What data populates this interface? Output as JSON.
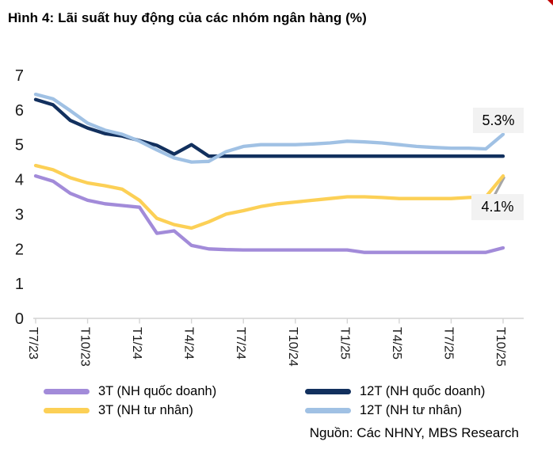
{
  "title": "Hình 4: Lãi suất huy động của các nhóm ngân hàng (%)",
  "source": "Nguồn: Các NHNY, MBS Research",
  "chart_data": {
    "type": "line",
    "title": "Hình 4: Lãi suất huy động của các nhóm ngân hàng (%)",
    "x_tick_labels": [
      "T7/23",
      "T10/23",
      "T1/24",
      "T4/24",
      "T7/24",
      "T10/24",
      "T1/25",
      "T4/25",
      "T7/25",
      "T10/25"
    ],
    "x_tick_every": 3,
    "x_unit": "month",
    "y_ticks": [
      0,
      1,
      2,
      3,
      4,
      5,
      6,
      7
    ],
    "ylim": [
      0,
      7
    ],
    "grid": false,
    "legend_position": "bottom",
    "axis_color": "#D4D4D4",
    "annotation_bg": "#F2F2F2",
    "series": [
      {
        "key": "3t-quoc-doanh",
        "name": "3T (NH quốc doanh)",
        "color": "#A28BD9",
        "values": [
          4.1,
          3.95,
          3.6,
          3.4,
          3.3,
          3.25,
          3.2,
          2.45,
          2.52,
          2.1,
          2.0,
          1.98,
          1.97,
          1.97,
          1.97,
          1.97,
          1.97,
          1.97,
          1.97,
          1.9,
          1.9,
          1.9,
          1.9,
          1.9,
          1.9,
          1.9,
          1.9,
          2.03
        ]
      },
      {
        "key": "3t-tu-nhan",
        "name": "3T (NH tư nhân)",
        "color": "#FCD056",
        "values": [
          4.4,
          4.28,
          4.05,
          3.9,
          3.82,
          3.72,
          3.4,
          2.88,
          2.7,
          2.6,
          2.78,
          3.0,
          3.1,
          3.22,
          3.3,
          3.35,
          3.4,
          3.45,
          3.5,
          3.5,
          3.48,
          3.45,
          3.45,
          3.45,
          3.45,
          3.48,
          3.5,
          4.1
        ]
      },
      {
        "key": "12t-quoc-doanh",
        "name": "12T (NH quốc doanh)",
        "color": "#12305E",
        "values": [
          6.3,
          6.15,
          5.7,
          5.48,
          5.32,
          5.25,
          5.12,
          4.98,
          4.73,
          5.0,
          4.67,
          4.67,
          4.67,
          4.67,
          4.67,
          4.67,
          4.67,
          4.67,
          4.67,
          4.67,
          4.67,
          4.67,
          4.67,
          4.67,
          4.67,
          4.67,
          4.67,
          4.67
        ]
      },
      {
        "key": "12t-tu-nhan",
        "name": "12T (NH tư nhân)",
        "color": "#A0C1E4",
        "values": [
          6.45,
          6.32,
          5.98,
          5.62,
          5.42,
          5.3,
          5.1,
          4.85,
          4.62,
          4.5,
          4.52,
          4.8,
          4.95,
          5.0,
          5.0,
          5.0,
          5.02,
          5.05,
          5.1,
          5.08,
          5.05,
          5.0,
          4.95,
          4.92,
          4.9,
          4.9,
          4.88,
          5.3
        ]
      }
    ],
    "end_labels": [
      {
        "text": "5.3%",
        "value": 5.3,
        "series": "12T (NH tư nhân)"
      },
      {
        "text": "4.1%",
        "value": 4.1,
        "series": "3T (NH tư nhân)"
      }
    ],
    "leader_line": {
      "color": "#A6A6A6",
      "from": {
        "month_index": 26.4,
        "value": 3.45
      },
      "to": {
        "month_index": 27.05,
        "value": 4.05
      }
    }
  }
}
